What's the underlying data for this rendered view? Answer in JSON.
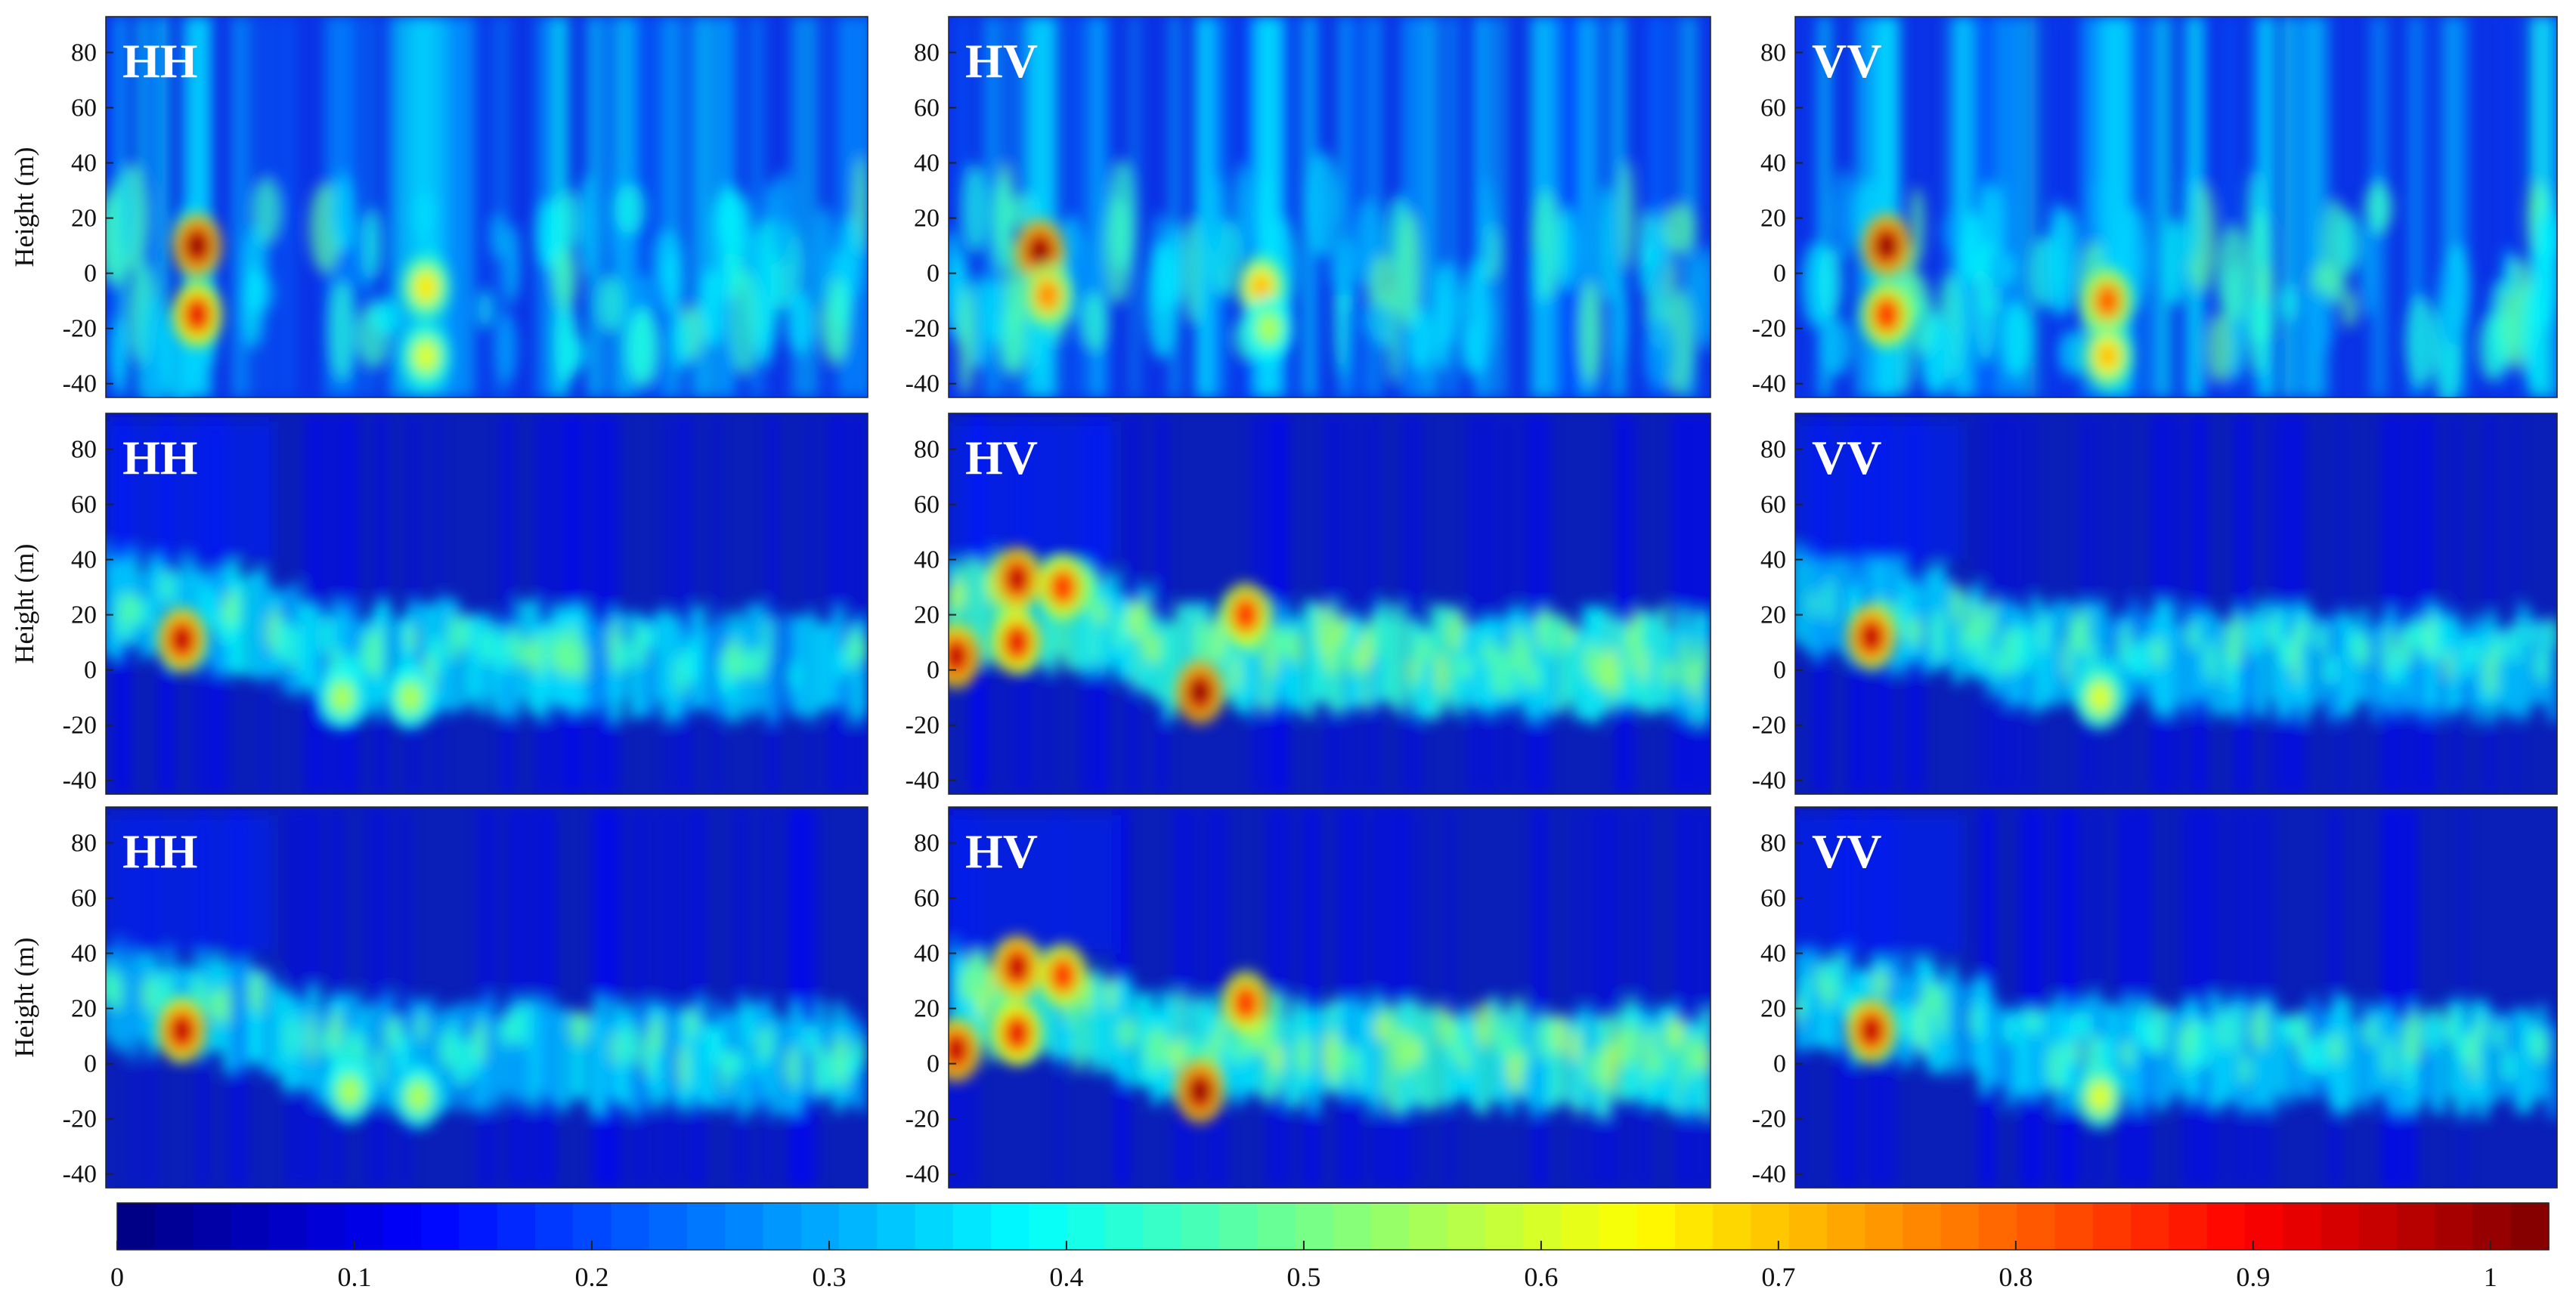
{
  "chart_data": {
    "type": "heatmap",
    "title": "",
    "layout": "3 rows x 3 columns of tomographic intensity profiles with a shared colorbar",
    "ylabel": "Height (m)",
    "xlabel": "",
    "ylim": [
      -45,
      93
    ],
    "yticks": [
      80,
      60,
      40,
      20,
      0,
      -20,
      -40
    ],
    "colormap": "jet",
    "colorbar": {
      "range": [
        0,
        1
      ],
      "ticks": [
        0,
        0.1,
        0.2,
        0.3,
        0.4,
        0.5,
        0.6,
        0.7,
        0.8,
        0.9,
        1
      ],
      "tick_labels": [
        "0",
        "0.1",
        "0.2",
        "0.3",
        "0.4",
        "0.5",
        "0.6",
        "0.7",
        "0.8",
        "0.9",
        "1"
      ]
    },
    "panels": [
      {
        "row": 1,
        "col": 1,
        "label": "HH",
        "profile": "spread",
        "hotspots": [
          {
            "x": 0.12,
            "h": 10,
            "v": 1.0
          },
          {
            "x": 0.12,
            "h": -15,
            "v": 0.9
          },
          {
            "x": 0.42,
            "h": -5,
            "v": 0.65
          },
          {
            "x": 0.42,
            "h": -30,
            "v": 0.6
          }
        ]
      },
      {
        "row": 1,
        "col": 2,
        "label": "HV",
        "profile": "spread",
        "hotspots": [
          {
            "x": 0.12,
            "h": 8,
            "v": 1.0
          },
          {
            "x": 0.13,
            "h": -8,
            "v": 0.75
          },
          {
            "x": 0.41,
            "h": -5,
            "v": 0.7
          },
          {
            "x": 0.42,
            "h": -20,
            "v": 0.55
          }
        ]
      },
      {
        "row": 1,
        "col": 3,
        "label": "VV",
        "profile": "spread",
        "hotspots": [
          {
            "x": 0.12,
            "h": 10,
            "v": 1.0
          },
          {
            "x": 0.12,
            "h": -15,
            "v": 0.85
          },
          {
            "x": 0.41,
            "h": -10,
            "v": 0.8
          },
          {
            "x": 0.41,
            "h": -30,
            "v": 0.7
          }
        ]
      },
      {
        "row": 2,
        "col": 1,
        "label": "HH",
        "profile": "layered",
        "hotspots": [
          {
            "x": 0.1,
            "h": 11,
            "v": 0.95
          },
          {
            "x": 0.31,
            "h": -10,
            "v": 0.55
          },
          {
            "x": 0.4,
            "h": -10,
            "v": 0.55
          }
        ]
      },
      {
        "row": 2,
        "col": 2,
        "label": "HV",
        "profile": "layered",
        "hotspots": [
          {
            "x": 0.09,
            "h": 33,
            "v": 0.95
          },
          {
            "x": 0.09,
            "h": 10,
            "v": 0.9
          },
          {
            "x": 0.15,
            "h": 30,
            "v": 0.85
          },
          {
            "x": 0.33,
            "h": -8,
            "v": 1.0
          },
          {
            "x": 0.39,
            "h": 20,
            "v": 0.85
          },
          {
            "x": 0.01,
            "h": 5,
            "v": 0.95
          }
        ]
      },
      {
        "row": 2,
        "col": 3,
        "label": "VV",
        "profile": "layered",
        "hotspots": [
          {
            "x": 0.1,
            "h": 12,
            "v": 0.95
          },
          {
            "x": 0.4,
            "h": -10,
            "v": 0.6
          }
        ]
      },
      {
        "row": 3,
        "col": 1,
        "label": "HH",
        "profile": "layered",
        "hotspots": [
          {
            "x": 0.1,
            "h": 12,
            "v": 0.95
          },
          {
            "x": 0.32,
            "h": -10,
            "v": 0.55
          },
          {
            "x": 0.41,
            "h": -12,
            "v": 0.55
          }
        ]
      },
      {
        "row": 3,
        "col": 2,
        "label": "HV",
        "profile": "layered",
        "hotspots": [
          {
            "x": 0.09,
            "h": 35,
            "v": 0.95
          },
          {
            "x": 0.09,
            "h": 11,
            "v": 0.9
          },
          {
            "x": 0.15,
            "h": 32,
            "v": 0.85
          },
          {
            "x": 0.33,
            "h": -10,
            "v": 1.0
          },
          {
            "x": 0.39,
            "h": 22,
            "v": 0.85
          },
          {
            "x": 0.01,
            "h": 5,
            "v": 0.95
          }
        ]
      },
      {
        "row": 3,
        "col": 3,
        "label": "VV",
        "profile": "layered",
        "hotspots": [
          {
            "x": 0.1,
            "h": 12,
            "v": 0.95
          },
          {
            "x": 0.4,
            "h": -12,
            "v": 0.6
          }
        ]
      }
    ]
  }
}
